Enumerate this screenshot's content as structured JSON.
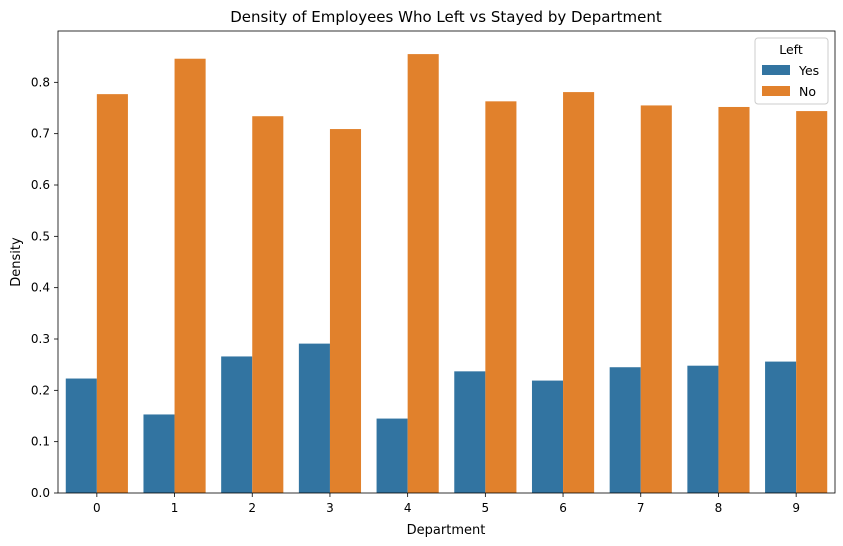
{
  "chart_data": {
    "type": "bar",
    "title": "Density of Employees Who Left vs Stayed by Department",
    "xlabel": "Department",
    "ylabel": "Density",
    "categories": [
      "0",
      "1",
      "2",
      "3",
      "4",
      "5",
      "6",
      "7",
      "8",
      "9"
    ],
    "ylim": [
      0,
      0.9
    ],
    "yticks": [
      "0.0",
      "0.1",
      "0.2",
      "0.3",
      "0.4",
      "0.5",
      "0.6",
      "0.7",
      "0.8"
    ],
    "grid": false,
    "legend": {
      "title": "Left",
      "placement": "top-right"
    },
    "series": [
      {
        "name": "Yes",
        "color": "#3274a1",
        "values": [
          0.223,
          0.153,
          0.266,
          0.291,
          0.145,
          0.237,
          0.219,
          0.245,
          0.248,
          0.256
        ]
      },
      {
        "name": "No",
        "color": "#e1812c",
        "values": [
          0.777,
          0.846,
          0.734,
          0.709,
          0.855,
          0.763,
          0.781,
          0.755,
          0.752,
          0.744
        ]
      }
    ]
  }
}
